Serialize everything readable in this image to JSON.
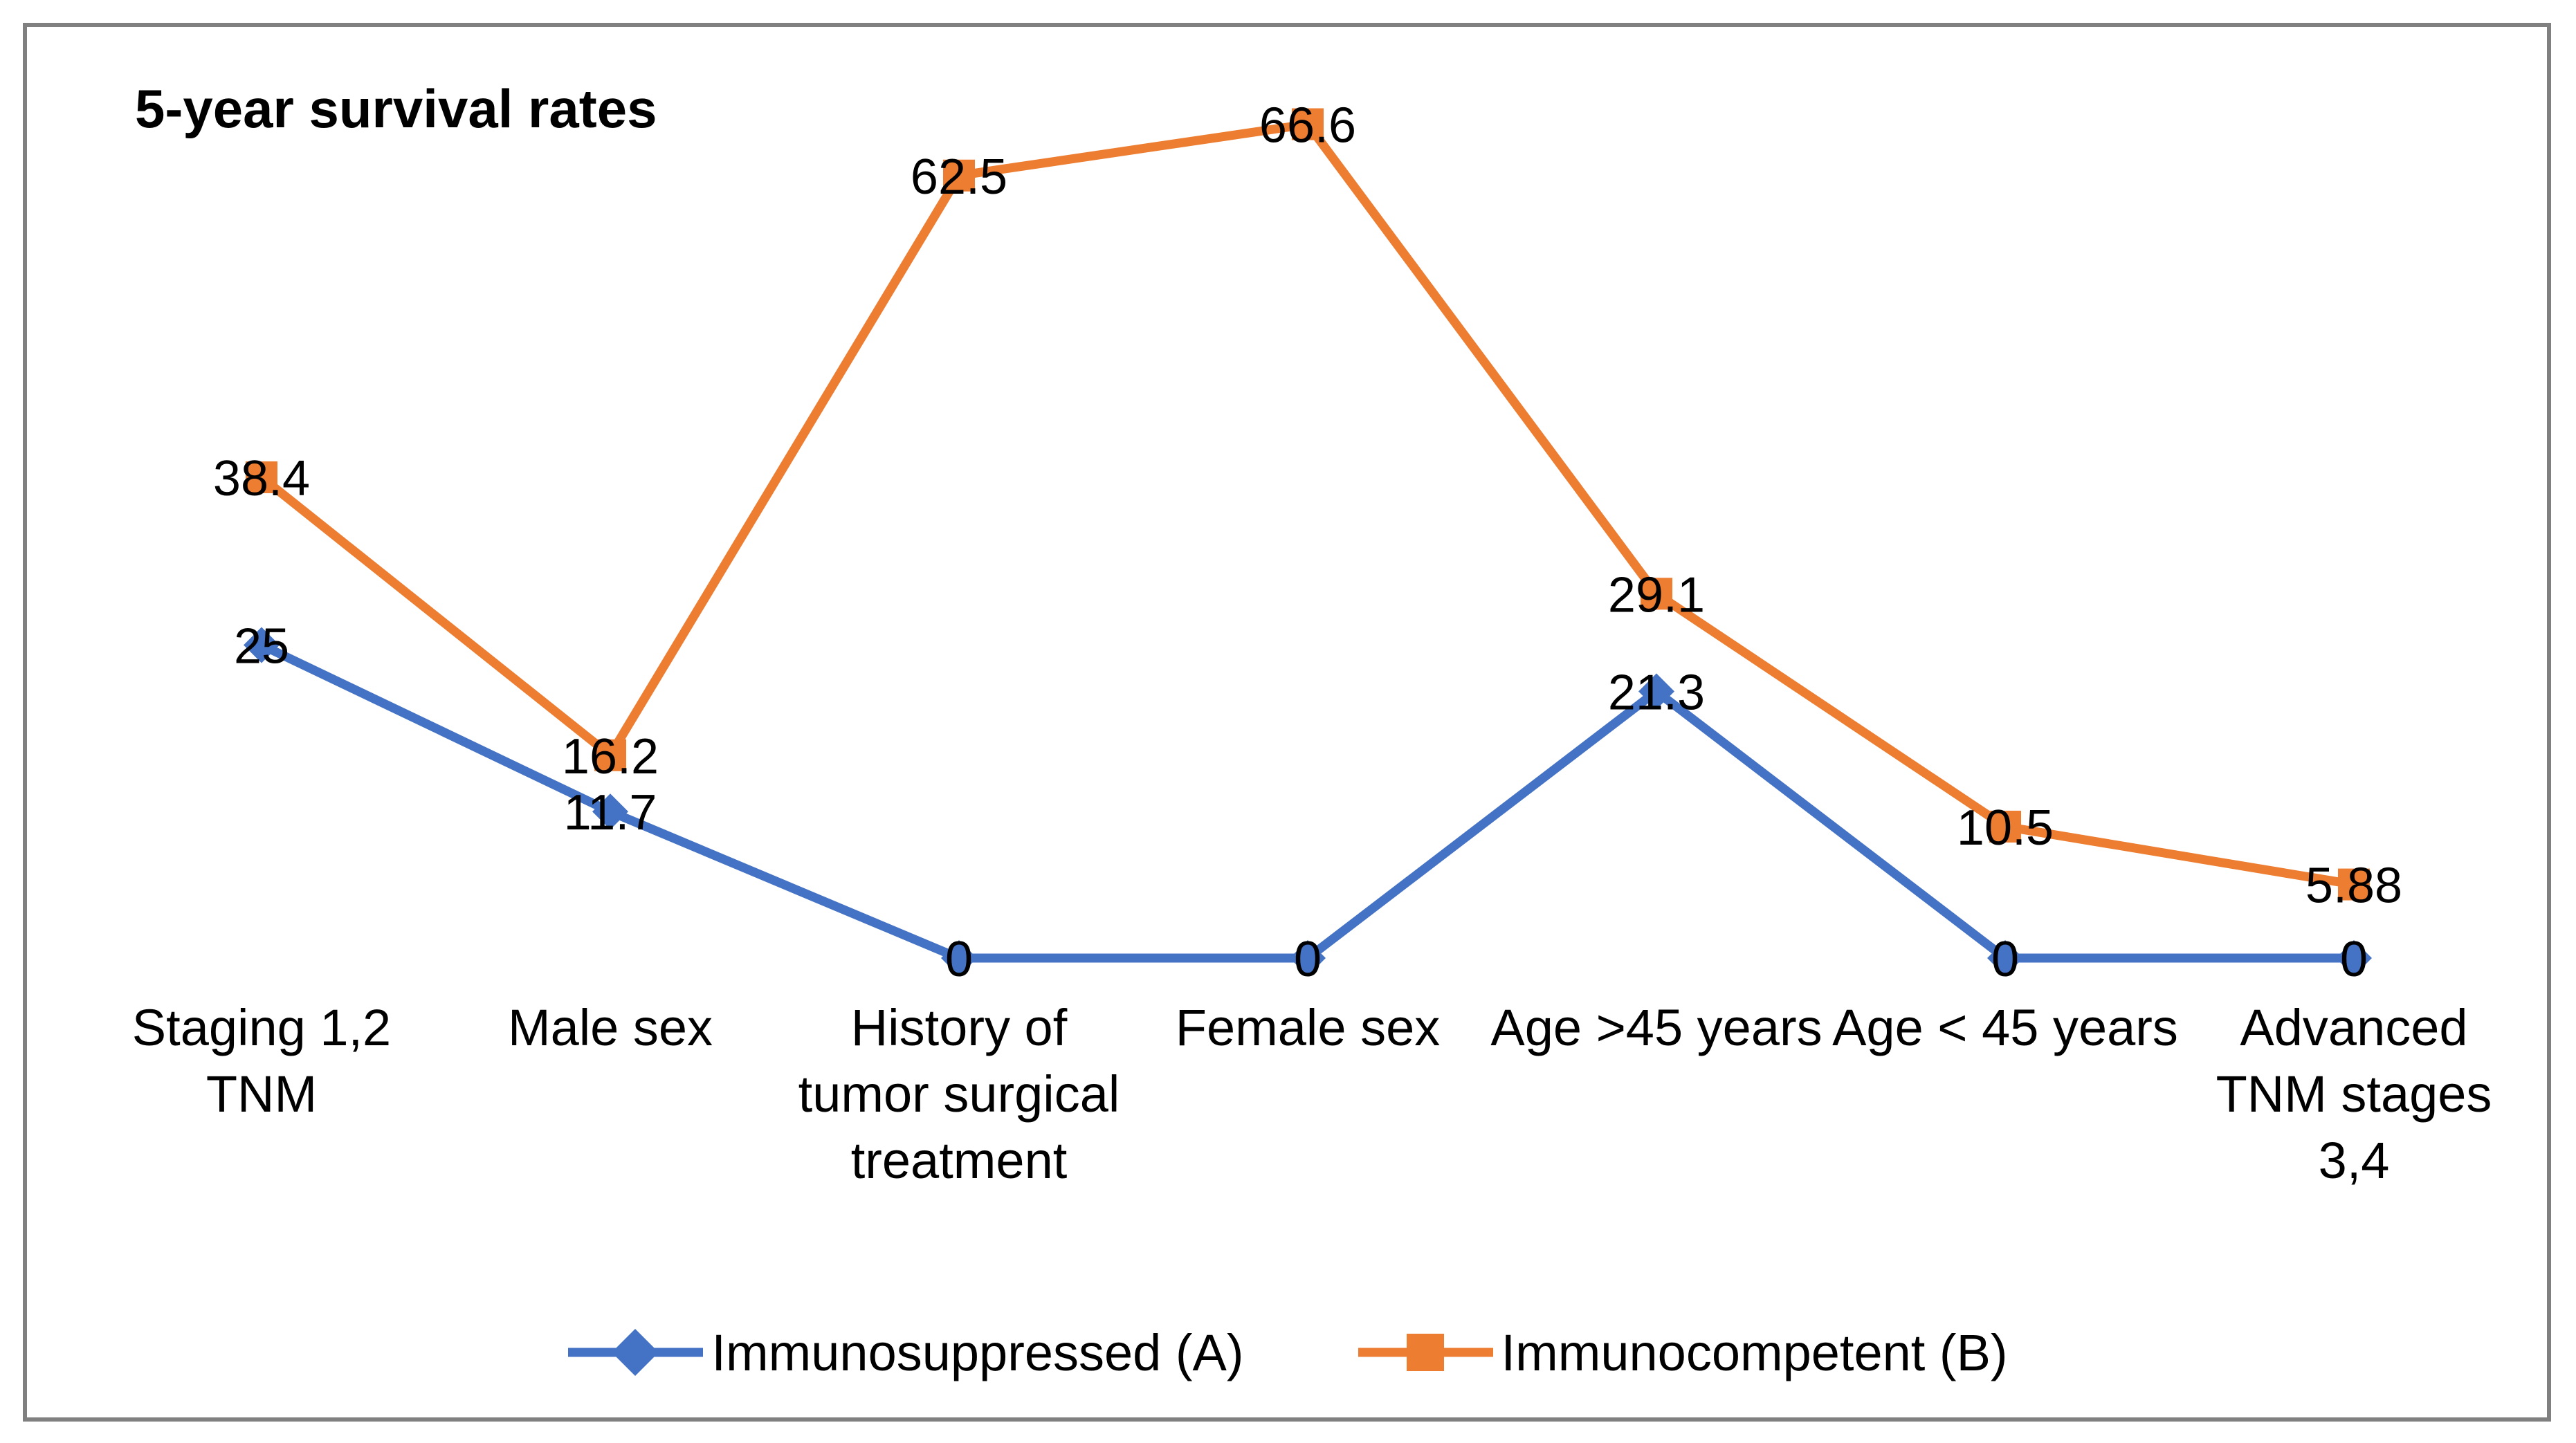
{
  "chart": {
    "frame_color": "#808080",
    "background": "#FFFFFF",
    "text_color": "#000000"
  },
  "chart_data": {
    "type": "line",
    "title": "5-year survival rates",
    "categories": [
      "Staging 1,2\nTNM",
      "Male sex",
      "History of\ntumor surgical\ntreatment",
      "Female sex",
      "Age >45 years",
      "Age < 45 years",
      "Advanced\nTNM stages\n3,4"
    ],
    "series": [
      {
        "name": "Immunosuppressed (A)",
        "color": "#4472C4",
        "marker": "diamond",
        "values": [
          25,
          11.7,
          0,
          0,
          21.3,
          0,
          0
        ],
        "labels": [
          "25",
          "11.7",
          "0",
          "0",
          "21.3",
          "0",
          "0"
        ]
      },
      {
        "name": "Immunocompetent (B)",
        "color": "#ED7D31",
        "marker": "square",
        "values": [
          38.4,
          16.2,
          62.5,
          66.6,
          29.1,
          10.5,
          5.88
        ],
        "labels": [
          "38.4",
          "16.2",
          "62.5",
          "66.6",
          "29.1",
          "10.5",
          "5.88"
        ]
      }
    ],
    "ylim": [
      0,
      70
    ],
    "grid": false,
    "axes_visible": false,
    "data_labels": "center",
    "legend_position": "bottom"
  }
}
